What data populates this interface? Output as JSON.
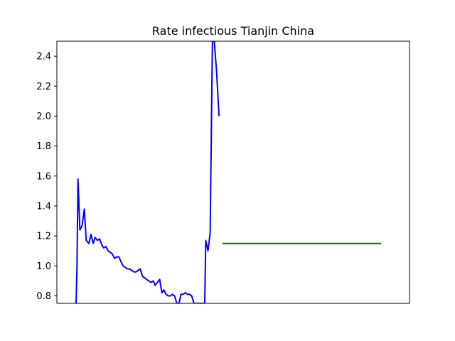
{
  "chart_data": {
    "type": "line",
    "title": "Rate infectious Tianjin China",
    "xlabel": "",
    "ylabel": "",
    "xlim": [
      0,
      100
    ],
    "ylim": [
      0.75,
      2.5
    ],
    "yticks": [
      0.8,
      1.0,
      1.2,
      1.4,
      1.6,
      1.8,
      2.0,
      2.2,
      2.4
    ],
    "ytick_labels": [
      "0.8",
      "1.0",
      "1.2",
      "1.4",
      "1.6",
      "1.8",
      "2.0",
      "2.2",
      "2.4"
    ],
    "xticks_visible": false,
    "grid": false,
    "legend": "none",
    "series": [
      {
        "color": "#0000ff",
        "x": [
          0,
          0.3,
          0.6,
          1.2,
          1.9,
          2.6,
          3.2,
          4.0,
          4.7,
          5.4,
          6.0,
          6.7,
          7.4,
          8.1,
          8.7,
          9.4,
          10.1,
          10.8,
          11.4,
          12.1,
          12.8,
          13.5,
          14.1,
          14.8,
          15.5,
          16.2,
          16.8,
          17.5,
          18.2,
          18.9,
          19.5,
          20.2,
          20.9,
          21.6,
          22.2,
          22.9,
          23.6,
          24.3,
          24.9,
          25.6,
          26.3,
          27.0,
          27.6,
          28.3,
          29.0,
          29.7,
          30.3,
          31.0,
          31.7,
          32.4,
          33.0,
          33.7,
          34.4,
          35.1,
          35.7,
          36.4,
          37.1,
          37.8,
          38.4,
          39.1,
          39.8,
          40.5,
          40.8,
          41.5,
          42.2,
          42.9,
          43.5,
          44.2,
          45.0
        ],
        "y": [
          0.75,
          1.0,
          1.58,
          1.24,
          1.27,
          1.38,
          1.17,
          1.15,
          1.21,
          1.15,
          1.19,
          1.17,
          1.18,
          1.14,
          1.12,
          1.13,
          1.1,
          1.09,
          1.08,
          1.05,
          1.06,
          1.06,
          1.03,
          1.0,
          0.99,
          0.98,
          0.98,
          0.97,
          0.96,
          0.96,
          0.97,
          0.98,
          0.93,
          0.92,
          0.91,
          0.9,
          0.89,
          0.9,
          0.87,
          0.89,
          0.91,
          0.82,
          0.84,
          0.81,
          0.8,
          0.8,
          0.81,
          0.8,
          0.75,
          0.75,
          0.81,
          0.81,
          0.82,
          0.81,
          0.81,
          0.8,
          0.75,
          0.75,
          0.75,
          0.75,
          0.75,
          0.75,
          1.17,
          1.1,
          1.22,
          2.5,
          2.5,
          2.3,
          2.0
        ]
      },
      {
        "color": "#008000",
        "x": [
          46,
          96
        ],
        "y": [
          1.15,
          1.15
        ]
      }
    ]
  }
}
